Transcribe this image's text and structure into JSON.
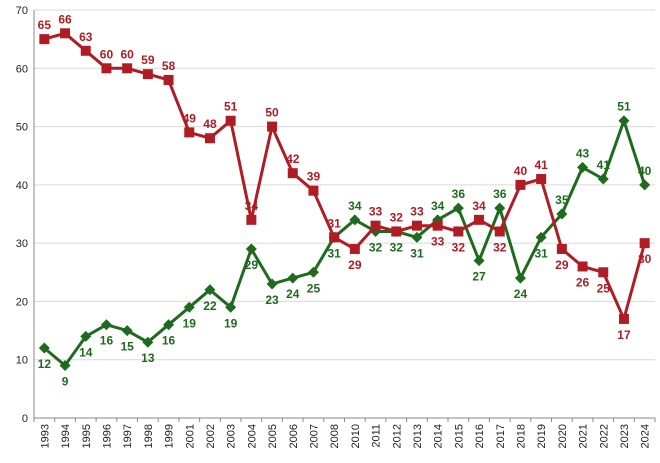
{
  "colors": {
    "series_1": "#1e6b1e",
    "series_2": "#b01c24",
    "grid": "#d9d9d9",
    "axis": "#888888"
  },
  "chart_data": {
    "type": "line",
    "x": [
      "1993",
      "1994",
      "1995",
      "1996",
      "1997",
      "1998",
      "1999",
      "2001",
      "2002",
      "2003",
      "2004",
      "2005",
      "2006",
      "2007",
      "2008",
      "2010",
      "2011",
      "2012",
      "2013",
      "2014",
      "2015",
      "2016",
      "2017",
      "2018",
      "2019",
      "2020",
      "2021",
      "2022",
      "2023",
      "2024"
    ],
    "ylim": [
      0,
      70
    ],
    "yticks": [
      0,
      10,
      20,
      30,
      40,
      50,
      60,
      70
    ],
    "grid": true,
    "series": [
      {
        "color": "#1e6b1e",
        "marker": "diamond",
        "values": [
          12,
          9,
          14,
          16,
          15,
          13,
          16,
          19,
          22,
          19,
          29,
          23,
          24,
          25,
          31,
          34,
          32,
          32,
          31,
          34,
          36,
          27,
          36,
          24,
          31,
          35,
          43,
          41,
          51,
          40
        ],
        "labels": [
          "12",
          "9",
          "14",
          "16",
          "15",
          "13",
          "16",
          "19",
          "22",
          "19",
          "29",
          "23",
          "24",
          "25",
          "31",
          "34",
          "32",
          "32",
          "31",
          "34",
          "36",
          "27",
          "36",
          "24",
          "31",
          "35",
          "43",
          "41",
          "51",
          "40"
        ]
      },
      {
        "color": "#b01c24",
        "marker": "square",
        "values": [
          65,
          66,
          63,
          60,
          60,
          59,
          58,
          49,
          48,
          51,
          34,
          50,
          42,
          39,
          31,
          29,
          33,
          32,
          33,
          33,
          32,
          34,
          32,
          40,
          41,
          29,
          26,
          25,
          17,
          30
        ],
        "labels": [
          "65",
          "66",
          "63",
          "60",
          "60",
          "59",
          "58",
          "49",
          "48",
          "51",
          "34",
          "50",
          "42",
          "39",
          "31",
          "29",
          "33",
          "32",
          "33",
          "33",
          "32",
          "34",
          "32",
          "40",
          "41",
          "29",
          "26",
          "25",
          "17",
          "30"
        ]
      }
    ]
  }
}
